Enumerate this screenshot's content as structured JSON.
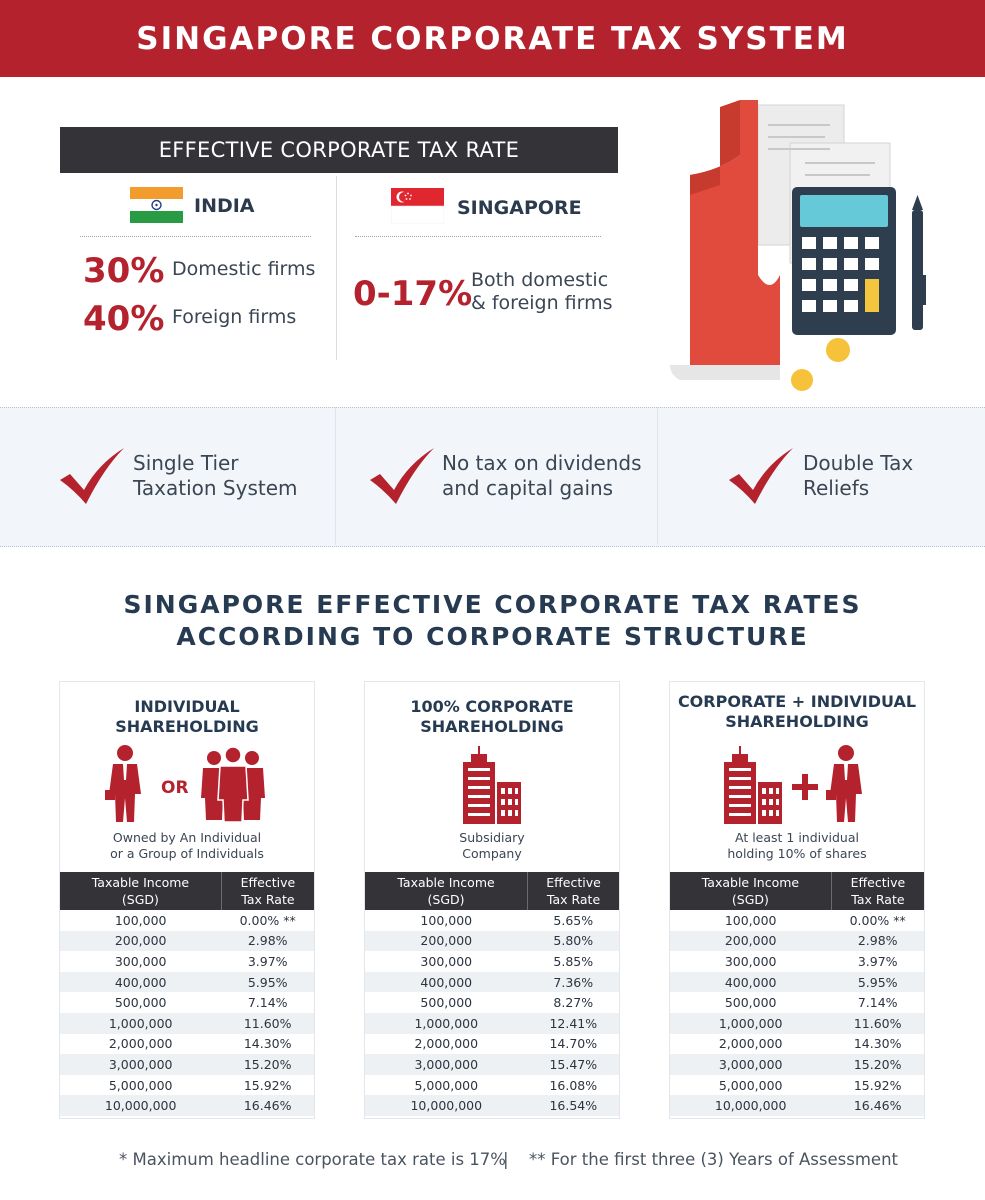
{
  "header": {
    "title": "SINGAPORE CORPORATE TAX SYSTEM"
  },
  "effective_rate": {
    "title": "EFFECTIVE CORPORATE TAX RATE",
    "india": {
      "name": "INDIA",
      "rates": [
        {
          "value": "30%",
          "label": "Domestic firms"
        },
        {
          "value": "40%",
          "label": "Foreign firms"
        }
      ]
    },
    "singapore": {
      "name": "SINGAPORE",
      "rate": {
        "value": "0-17%",
        "label_line1": "Both domestic",
        "label_line2": "& foreign firms"
      }
    }
  },
  "features": [
    {
      "line1": "Single Tier",
      "line2": "Taxation System"
    },
    {
      "line1": "No tax on dividends",
      "line2": "and capital gains"
    },
    {
      "line1": "Double Tax",
      "line2": "Reliefs"
    }
  ],
  "section": {
    "title_line1": "SINGAPORE EFFECTIVE CORPORATE TAX RATES",
    "title_line2": "ACCORDING TO CORPORATE STRUCTURE"
  },
  "cards": [
    {
      "title_line1": "INDIVIDUAL",
      "title_line2": "SHAREHOLDING",
      "or_label": "OR",
      "caption_line1": "Owned by An Individual",
      "caption_line2": "or a Group of Individuals",
      "headers": [
        "Taxable Income\n(SGD)",
        "Effective\nTax Rate"
      ],
      "rows": [
        [
          "100,000",
          "0.00% **"
        ],
        [
          "200,000",
          "2.98%"
        ],
        [
          "300,000",
          "3.97%"
        ],
        [
          "400,000",
          "5.95%"
        ],
        [
          "500,000",
          "7.14%"
        ],
        [
          "1,000,000",
          "11.60%"
        ],
        [
          "2,000,000",
          "14.30%"
        ],
        [
          "3,000,000",
          "15.20%"
        ],
        [
          "5,000,000",
          "15.92%"
        ],
        [
          "10,000,000",
          "16.46%"
        ]
      ]
    },
    {
      "title_line1": "100% CORPORATE",
      "title_line2": "SHAREHOLDING",
      "caption_line1": "Subsidiary",
      "caption_line2": "Company",
      "headers": [
        "Taxable Income\n(SGD)",
        "Effective\nTax Rate"
      ],
      "rows": [
        [
          "100,000",
          "5.65%"
        ],
        [
          "200,000",
          "5.80%"
        ],
        [
          "300,000",
          "5.85%"
        ],
        [
          "400,000",
          "7.36%"
        ],
        [
          "500,000",
          "8.27%"
        ],
        [
          "1,000,000",
          "12.41%"
        ],
        [
          "2,000,000",
          "14.70%"
        ],
        [
          "3,000,000",
          "15.47%"
        ],
        [
          "5,000,000",
          "16.08%"
        ],
        [
          "10,000,000",
          "16.54%"
        ]
      ]
    },
    {
      "title_line1": "CORPORATE + INDIVIDUAL",
      "title_line2": "SHAREHOLDING",
      "caption_line1": "At least 1 individual",
      "caption_line2": "holding 10% of shares",
      "headers": [
        "Taxable Income\n(SGD)",
        "Effective\nTax Rate"
      ],
      "rows": [
        [
          "100,000",
          "0.00% **"
        ],
        [
          "200,000",
          "2.98%"
        ],
        [
          "300,000",
          "3.97%"
        ],
        [
          "400,000",
          "5.95%"
        ],
        [
          "500,000",
          "7.14%"
        ],
        [
          "1,000,000",
          "11.60%"
        ],
        [
          "2,000,000",
          "14.30%"
        ],
        [
          "3,000,000",
          "15.20%"
        ],
        [
          "5,000,000",
          "15.92%"
        ],
        [
          "10,000,000",
          "16.46%"
        ]
      ]
    }
  ],
  "footnotes": {
    "note1": "* Maximum headline corporate tax rate is 17%",
    "separator": "|",
    "note2": "** For the first three (3) Years of Assessment"
  },
  "colors": {
    "brand_red": "#b3222d",
    "dark_bar": "#333338",
    "navy_text": "#263b52",
    "strip_bg": "#f2f6fa"
  }
}
